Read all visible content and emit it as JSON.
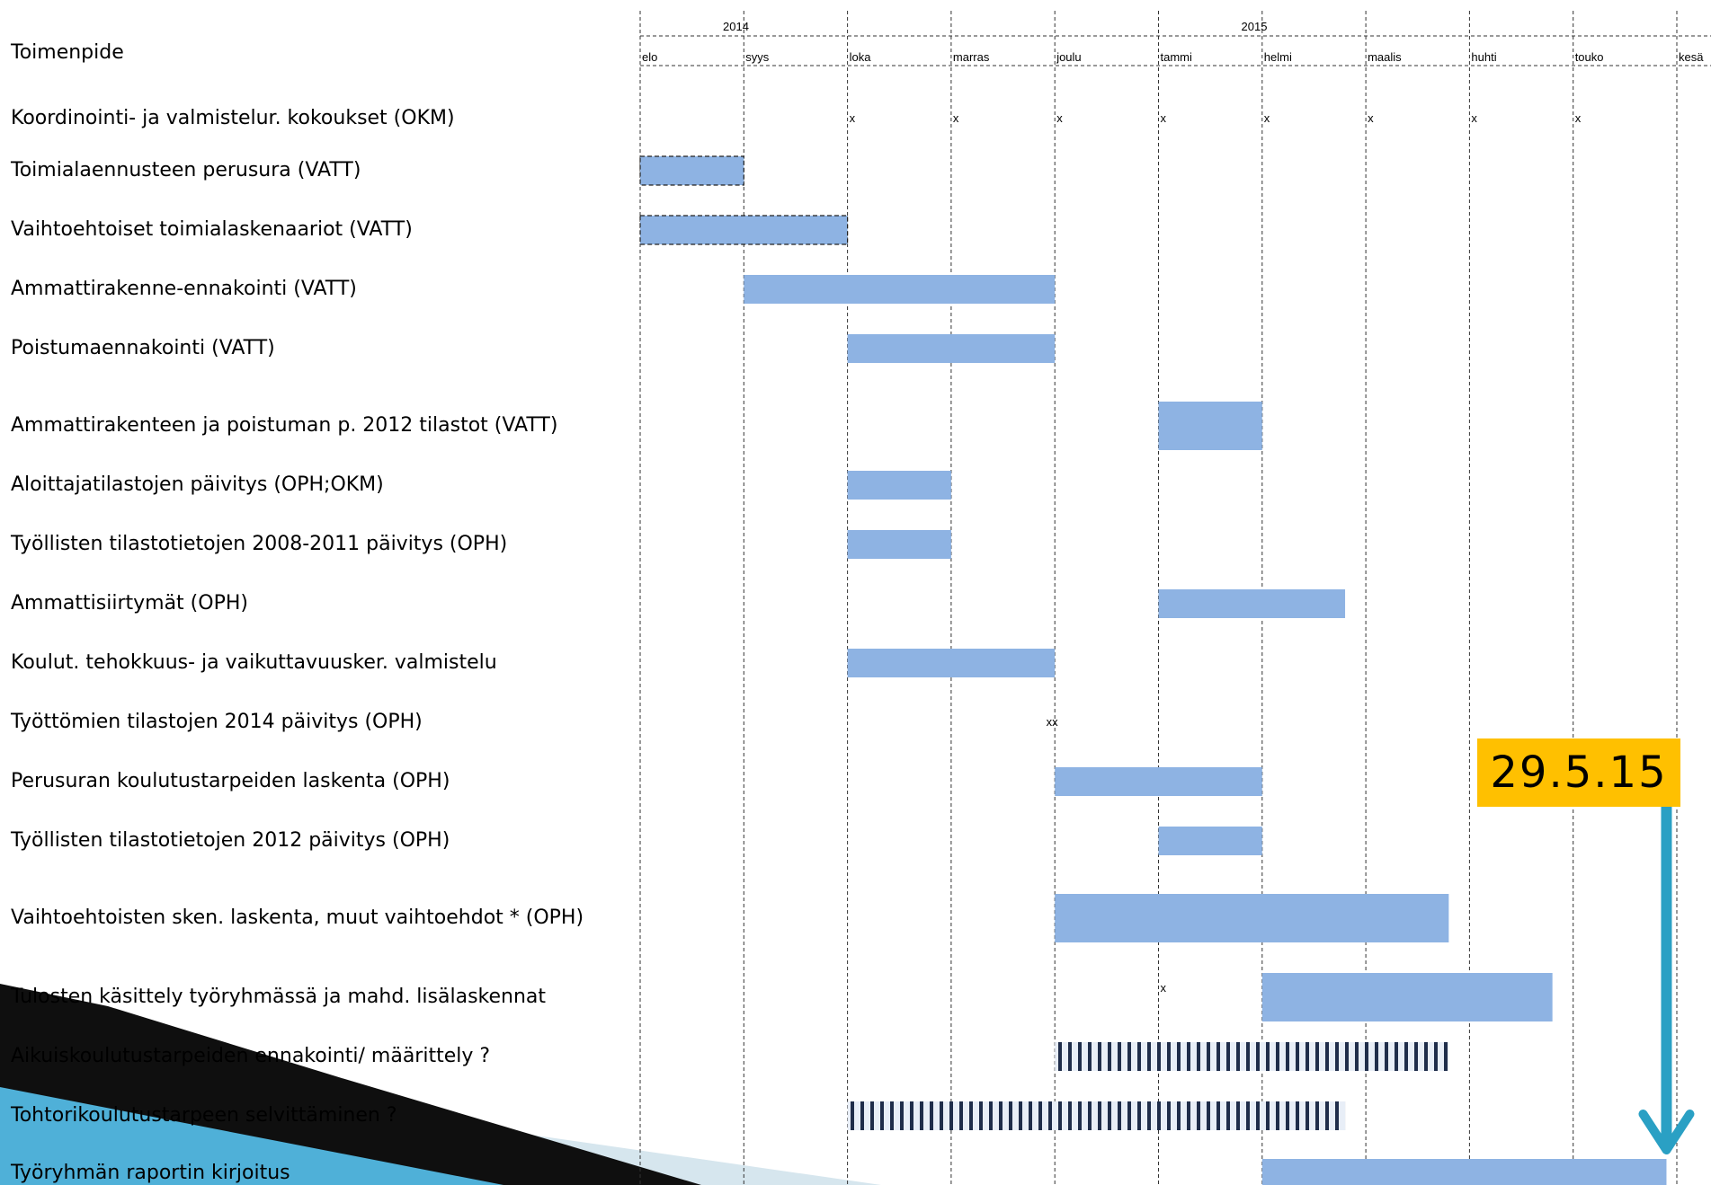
{
  "header": {
    "label": "Toimenpide"
  },
  "years": [
    "2014",
    "2015"
  ],
  "months": [
    "elo",
    "syys",
    "loka",
    "marras",
    "joulu",
    "tammi",
    "helmi",
    "maalis",
    "huhti",
    "touko",
    "kesä"
  ],
  "tasks": [
    "Koordinointi- ja valmistelur. kokoukset (OKM)",
    "Toimialaennusteen perusura (VATT)",
    "Vaihtoehtoiset toimialaskenaariot (VATT)",
    "Ammattirakenne-ennakointi (VATT)",
    "Poistumaennakointi (VATT)",
    "Ammattirakenteen ja poistuman p. 2012 tilastot (VATT)",
    "Aloittajatilastojen päivitys (OPH;OKM)",
    "Työllisten tilastotietojen 2008-2011 päivitys  (OPH)",
    "Ammattisiirtymät (OPH)",
    "Koulut. tehokkuus- ja vaikuttavuusker. valmistelu",
    "Työttömien tilastojen 2014 päivitys (OPH)",
    "Perusuran koulutustarpeiden laskenta (OPH)",
    "Työllisten tilastotietojen 2012 päivitys (OPH)",
    "Vaihtoehtoisten sken. laskenta, muut vaihtoehdot *  (OPH)",
    "Tulosten käsittely työryhmässä ja mahd. lisälaskennat",
    "Aikuiskoulutustarpeiden ennakointi/ määrittely ?",
    "Tohtorikoulutustarpeen selvittäminen ?",
    "Työryhmän raportin kirjoitus"
  ],
  "deadline": {
    "label": "29.5.15",
    "month_position": 9.9
  },
  "colors": {
    "bar": "#8eb3e3",
    "hatch_dark": "#1f2d4a",
    "callout": "#ffc000",
    "arrow": "#2aa0c4",
    "wave_dark": "#0f0f0f",
    "wave_light": "#4fb0d8",
    "wave_pale": "#d6e6ee"
  },
  "chart_data": {
    "type": "gantt",
    "time_axis": [
      "elo",
      "syys",
      "loka",
      "marras",
      "joulu",
      "tammi",
      "helmi",
      "maalis",
      "huhti",
      "touko",
      "kesä"
    ],
    "year_labels": [
      {
        "year": "2014",
        "from": 0,
        "to": 5
      },
      {
        "year": "2015",
        "from": 5,
        "to": 11
      }
    ],
    "tasks": [
      {
        "row": 0,
        "marks": [
          2,
          3,
          4,
          5,
          6,
          7,
          8,
          9
        ],
        "mark_text": "x"
      },
      {
        "row": 1,
        "start": 0,
        "end": 1,
        "style": "dashed"
      },
      {
        "row": 2,
        "start": 0,
        "end": 2,
        "style": "dashed"
      },
      {
        "row": 3,
        "start": 1,
        "end": 4,
        "style": "solid"
      },
      {
        "row": 4,
        "start": 2,
        "end": 4,
        "style": "solid"
      },
      {
        "row": 5,
        "start": 5,
        "end": 6,
        "style": "solid"
      },
      {
        "row": 6,
        "start": 2,
        "end": 3,
        "style": "solid"
      },
      {
        "row": 7,
        "start": 2,
        "end": 3,
        "style": "solid"
      },
      {
        "row": 8,
        "start": 5,
        "end": 6.8,
        "style": "solid"
      },
      {
        "row": 9,
        "start": 2,
        "end": 4,
        "style": "solid"
      },
      {
        "row": 10,
        "marks": [
          3.9
        ],
        "mark_text": "xx"
      },
      {
        "row": 11,
        "start": 4,
        "end": 6,
        "style": "solid"
      },
      {
        "row": 12,
        "start": 5,
        "end": 6,
        "style": "solid"
      },
      {
        "row": 13,
        "start": 4,
        "end": 7.8,
        "style": "solid"
      },
      {
        "row": 14,
        "start": 6,
        "end": 8.8,
        "style": "solid",
        "marks": [
          5
        ],
        "mark_text": "x"
      },
      {
        "row": 15,
        "start": 4,
        "end": 7.8,
        "style": "hatched"
      },
      {
        "row": 16,
        "start": 2,
        "end": 6.8,
        "style": "hatched"
      },
      {
        "row": 17,
        "start": 6,
        "end": 9.9,
        "style": "solid"
      }
    ]
  }
}
